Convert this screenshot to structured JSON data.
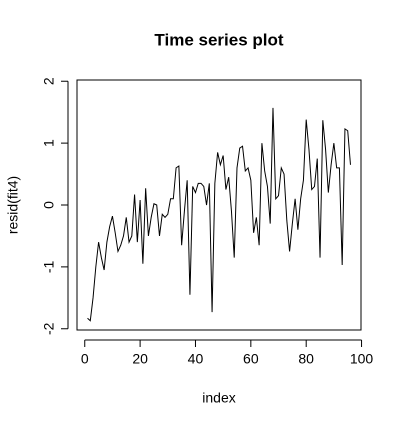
{
  "chart_data": {
    "type": "line",
    "title": "Time series plot",
    "x_label": "index",
    "y_label": "resid(fit4)",
    "x": [
      1,
      2,
      3,
      4,
      5,
      6,
      7,
      8,
      9,
      10,
      11,
      12,
      13,
      14,
      15,
      16,
      17,
      18,
      19,
      20,
      21,
      22,
      23,
      24,
      25,
      26,
      27,
      28,
      29,
      30,
      31,
      32,
      33,
      34,
      35,
      36,
      37,
      38,
      39,
      40,
      41,
      42,
      43,
      44,
      45,
      46,
      47,
      48,
      49,
      50,
      51,
      52,
      53,
      54,
      55,
      56,
      57,
      58,
      59,
      60,
      61,
      62,
      63,
      64,
      65,
      66,
      67,
      68,
      69,
      70,
      71,
      72,
      73,
      74,
      75,
      76,
      77,
      78,
      79,
      80,
      81,
      82,
      83,
      84,
      85,
      86,
      87,
      88,
      89,
      90,
      91,
      92,
      93,
      94,
      95,
      96
    ],
    "series": [
      {
        "name": "resid",
        "color": "#000000",
        "values": [
          -1.83,
          -1.87,
          -1.5,
          -1.0,
          -0.6,
          -0.85,
          -1.05,
          -0.6,
          -0.35,
          -0.18,
          -0.45,
          -0.75,
          -0.65,
          -0.5,
          -0.2,
          -0.6,
          -0.5,
          0.17,
          -0.6,
          0.08,
          -0.95,
          0.27,
          -0.5,
          -0.2,
          0.02,
          0.0,
          -0.5,
          -0.15,
          -0.2,
          -0.15,
          0.1,
          0.1,
          0.6,
          0.63,
          -0.65,
          -0.1,
          0.4,
          -1.45,
          0.3,
          0.2,
          0.35,
          0.35,
          0.3,
          0.0,
          0.35,
          -1.73,
          0.35,
          0.85,
          0.65,
          0.8,
          0.25,
          0.45,
          -0.1,
          -0.85,
          0.6,
          0.92,
          0.95,
          0.55,
          0.6,
          0.4,
          -0.45,
          -0.2,
          -0.65,
          1.0,
          0.55,
          0.3,
          -0.3,
          1.57,
          0.1,
          0.15,
          0.6,
          0.5,
          -0.25,
          -0.75,
          -0.3,
          0.1,
          -0.4,
          0.1,
          0.4,
          1.38,
          0.9,
          0.25,
          0.3,
          0.75,
          -0.85,
          1.37,
          0.9,
          0.2,
          0.65,
          1.0,
          0.6,
          0.6,
          -0.97,
          1.23,
          1.2,
          0.65
        ]
      }
    ],
    "xlim": [
      -2.8,
      99.8
    ],
    "xticks": [
      0,
      20,
      40,
      60,
      80,
      100
    ],
    "ylim": [
      -2.02,
      2.02
    ],
    "yticks": [
      -2,
      -1,
      0,
      1,
      2
    ]
  }
}
